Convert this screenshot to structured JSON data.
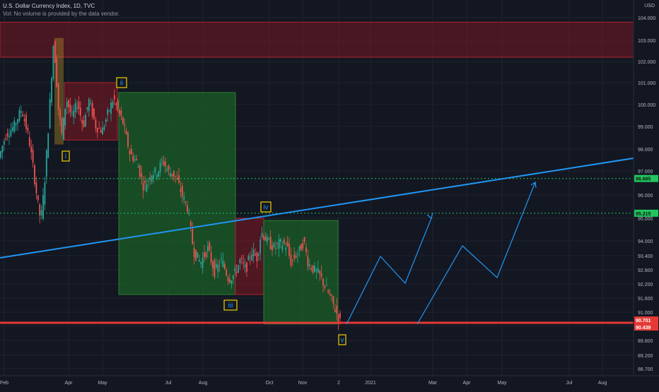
{
  "header": {
    "title": "U.S. Dollar Currency Index, 1D, TVC",
    "volume_note": "Vol: No volume is provided by the data vendor.",
    "currency": "USD"
  },
  "chart_data": {
    "type": "candlestick",
    "y_ticks": [
      "104.000",
      "103.000",
      "102.000",
      "101.000",
      "100.000",
      "99.000",
      "98.000",
      "97.000",
      "96.000",
      "95.000",
      "94.000",
      "93.400",
      "92.800",
      "92.200",
      "91.600",
      "91.000",
      "90.400",
      "89.800",
      "89.200",
      "88.700"
    ],
    "x_ticks": [
      "Feb",
      "Apr",
      "May",
      "Jul",
      "Aug",
      "Oct",
      "Nov",
      "2",
      "2021",
      "Mar",
      "Apr",
      "May",
      "Jul",
      "Aug"
    ],
    "price_labels": [
      {
        "text": "96.685",
        "value": 96.685,
        "color": "#22c55e"
      },
      {
        "text": "95.215",
        "value": 95.215,
        "color": "#22c55e"
      },
      {
        "text": "90.701",
        "value": 90.701,
        "color": "#e53935"
      },
      {
        "text": "90.439",
        "value": 90.439,
        "color": "#e53935"
      }
    ],
    "wave_labels": [
      {
        "text": "i"
      },
      {
        "text": "ii"
      },
      {
        "text": "iii"
      },
      {
        "text": "iv"
      },
      {
        "text": "v"
      }
    ],
    "colors": {
      "up": "#26a69a",
      "down": "#ef5350",
      "trendline": "#2196f3",
      "level_dotted": "#22c55e",
      "support": "#e53935",
      "label_box": "#f0d000"
    }
  }
}
